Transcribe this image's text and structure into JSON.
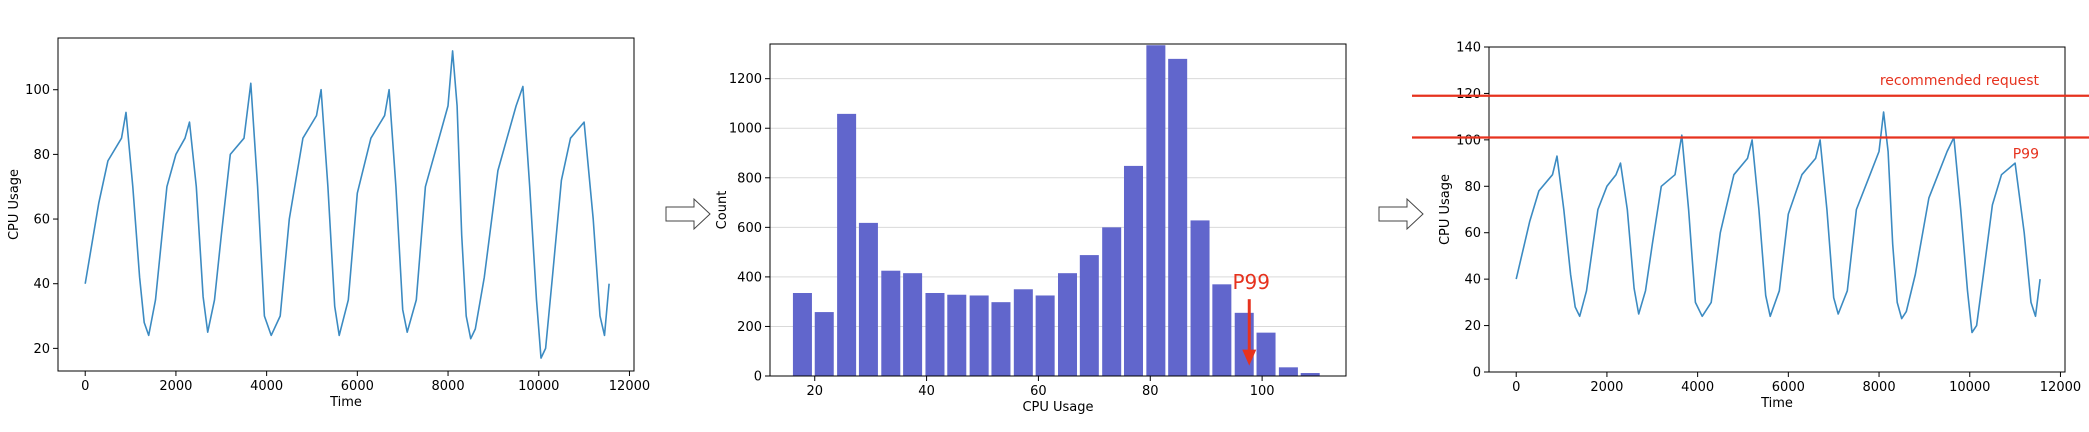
{
  "colors": {
    "series": "#3c8bc2",
    "bars": "#6166cc",
    "accent_red": "#e6321e",
    "axis": "#000000",
    "grid": "#d9d9d9"
  },
  "icons": [
    "right-arrow-icon",
    "right-arrow-icon"
  ],
  "chart_data": [
    {
      "type": "line",
      "xlabel": "Time",
      "ylabel": "CPU Usage",
      "xlim": [
        -600,
        12100
      ],
      "ylim": [
        13,
        116
      ],
      "xticks": [
        0,
        2000,
        4000,
        6000,
        8000,
        10000,
        12000
      ],
      "yticks": [
        20,
        40,
        60,
        80,
        100
      ],
      "series": [
        {
          "points": [
            [
              0,
              40
            ],
            [
              300,
              65
            ],
            [
              500,
              78
            ],
            [
              800,
              85
            ],
            [
              900,
              93
            ],
            [
              1050,
              70
            ],
            [
              1200,
              42
            ],
            [
              1300,
              28
            ],
            [
              1400,
              24
            ],
            [
              1550,
              35
            ],
            [
              1800,
              70
            ],
            [
              2000,
              80
            ],
            [
              2200,
              85
            ],
            [
              2300,
              90
            ],
            [
              2450,
              70
            ],
            [
              2600,
              36
            ],
            [
              2700,
              25
            ],
            [
              2850,
              35
            ],
            [
              3000,
              55
            ],
            [
              3200,
              80
            ],
            [
              3500,
              85
            ],
            [
              3650,
              102
            ],
            [
              3800,
              70
            ],
            [
              3950,
              30
            ],
            [
              4100,
              24
            ],
            [
              4300,
              30
            ],
            [
              4500,
              60
            ],
            [
              4800,
              85
            ],
            [
              5100,
              92
            ],
            [
              5200,
              100
            ],
            [
              5350,
              70
            ],
            [
              5500,
              33
            ],
            [
              5600,
              24
            ],
            [
              5800,
              35
            ],
            [
              6000,
              68
            ],
            [
              6300,
              85
            ],
            [
              6600,
              92
            ],
            [
              6700,
              100
            ],
            [
              6850,
              70
            ],
            [
              7000,
              32
            ],
            [
              7100,
              25
            ],
            [
              7300,
              35
            ],
            [
              7500,
              70
            ],
            [
              7800,
              85
            ],
            [
              8000,
              95
            ],
            [
              8100,
              112
            ],
            [
              8200,
              95
            ],
            [
              8300,
              55
            ],
            [
              8400,
              30
            ],
            [
              8500,
              23
            ],
            [
              8600,
              26
            ],
            [
              8800,
              42
            ],
            [
              9100,
              75
            ],
            [
              9300,
              85
            ],
            [
              9500,
              95
            ],
            [
              9650,
              101
            ],
            [
              9800,
              70
            ],
            [
              9950,
              35
            ],
            [
              10050,
              17
            ],
            [
              10150,
              20
            ],
            [
              10300,
              42
            ],
            [
              10500,
              72
            ],
            [
              10700,
              85
            ],
            [
              11000,
              90
            ],
            [
              11200,
              60
            ],
            [
              11350,
              30
            ],
            [
              11450,
              24
            ],
            [
              11550,
              40
            ]
          ]
        }
      ]
    },
    {
      "type": "bar",
      "xlabel": "CPU Usage",
      "ylabel": "Count",
      "xlim": [
        12,
        115
      ],
      "ylim": [
        0,
        1340
      ],
      "xticks": [
        20,
        40,
        60,
        80,
        100
      ],
      "yticks": [
        0,
        200,
        400,
        600,
        800,
        1000,
        1200
      ],
      "grid": true,
      "bar_width": 3.4,
      "bars": [
        {
          "x": 17.8,
          "value": 335
        },
        {
          "x": 21.7,
          "value": 258
        },
        {
          "x": 25.7,
          "value": 1058
        },
        {
          "x": 29.6,
          "value": 618
        },
        {
          "x": 33.6,
          "value": 425
        },
        {
          "x": 37.5,
          "value": 415
        },
        {
          "x": 41.5,
          "value": 335
        },
        {
          "x": 45.4,
          "value": 328
        },
        {
          "x": 49.4,
          "value": 325
        },
        {
          "x": 53.3,
          "value": 298
        },
        {
          "x": 57.3,
          "value": 350
        },
        {
          "x": 61.2,
          "value": 325
        },
        {
          "x": 65.2,
          "value": 415
        },
        {
          "x": 69.1,
          "value": 488
        },
        {
          "x": 73.1,
          "value": 600
        },
        {
          "x": 77.0,
          "value": 848
        },
        {
          "x": 81.0,
          "value": 1335
        },
        {
          "x": 84.9,
          "value": 1280
        },
        {
          "x": 88.9,
          "value": 628
        },
        {
          "x": 92.8,
          "value": 370
        },
        {
          "x": 96.8,
          "value": 255
        },
        {
          "x": 100.7,
          "value": 175
        },
        {
          "x": 104.7,
          "value": 35
        },
        {
          "x": 108.6,
          "value": 12
        }
      ],
      "annotation": {
        "text": "P99",
        "x": 97.7,
        "y_from": 310,
        "y_to": 50
      }
    },
    {
      "type": "line",
      "xlabel": "Time",
      "ylabel": "CPU Usage",
      "xlim": [
        -600,
        12100
      ],
      "ylim": [
        0,
        140
      ],
      "xticks": [
        0,
        2000,
        4000,
        6000,
        8000,
        10000,
        12000
      ],
      "yticks": [
        0,
        20,
        40,
        60,
        80,
        100,
        120,
        140
      ],
      "series": [
        {
          "points": [
            [
              0,
              40
            ],
            [
              300,
              65
            ],
            [
              500,
              78
            ],
            [
              800,
              85
            ],
            [
              900,
              93
            ],
            [
              1050,
              70
            ],
            [
              1200,
              42
            ],
            [
              1300,
              28
            ],
            [
              1400,
              24
            ],
            [
              1550,
              35
            ],
            [
              1800,
              70
            ],
            [
              2000,
              80
            ],
            [
              2200,
              85
            ],
            [
              2300,
              90
            ],
            [
              2450,
              70
            ],
            [
              2600,
              36
            ],
            [
              2700,
              25
            ],
            [
              2850,
              35
            ],
            [
              3000,
              55
            ],
            [
              3200,
              80
            ],
            [
              3500,
              85
            ],
            [
              3650,
              102
            ],
            [
              3800,
              70
            ],
            [
              3950,
              30
            ],
            [
              4100,
              24
            ],
            [
              4300,
              30
            ],
            [
              4500,
              60
            ],
            [
              4800,
              85
            ],
            [
              5100,
              92
            ],
            [
              5200,
              100
            ],
            [
              5350,
              70
            ],
            [
              5500,
              33
            ],
            [
              5600,
              24
            ],
            [
              5800,
              35
            ],
            [
              6000,
              68
            ],
            [
              6300,
              85
            ],
            [
              6600,
              92
            ],
            [
              6700,
              100
            ],
            [
              6850,
              70
            ],
            [
              7000,
              32
            ],
            [
              7100,
              25
            ],
            [
              7300,
              35
            ],
            [
              7500,
              70
            ],
            [
              7800,
              85
            ],
            [
              8000,
              95
            ],
            [
              8100,
              112
            ],
            [
              8200,
              95
            ],
            [
              8300,
              55
            ],
            [
              8400,
              30
            ],
            [
              8500,
              23
            ],
            [
              8600,
              26
            ],
            [
              8800,
              42
            ],
            [
              9100,
              75
            ],
            [
              9300,
              85
            ],
            [
              9500,
              95
            ],
            [
              9650,
              101
            ],
            [
              9800,
              70
            ],
            [
              9950,
              35
            ],
            [
              10050,
              17
            ],
            [
              10150,
              20
            ],
            [
              10300,
              42
            ],
            [
              10500,
              72
            ],
            [
              10700,
              85
            ],
            [
              11000,
              90
            ],
            [
              11200,
              60
            ],
            [
              11350,
              30
            ],
            [
              11450,
              24
            ],
            [
              11550,
              40
            ]
          ]
        }
      ],
      "reference_lines": [
        {
          "label": "recommended request",
          "y": 119
        },
        {
          "label": "P99",
          "y": 101
        }
      ]
    }
  ]
}
